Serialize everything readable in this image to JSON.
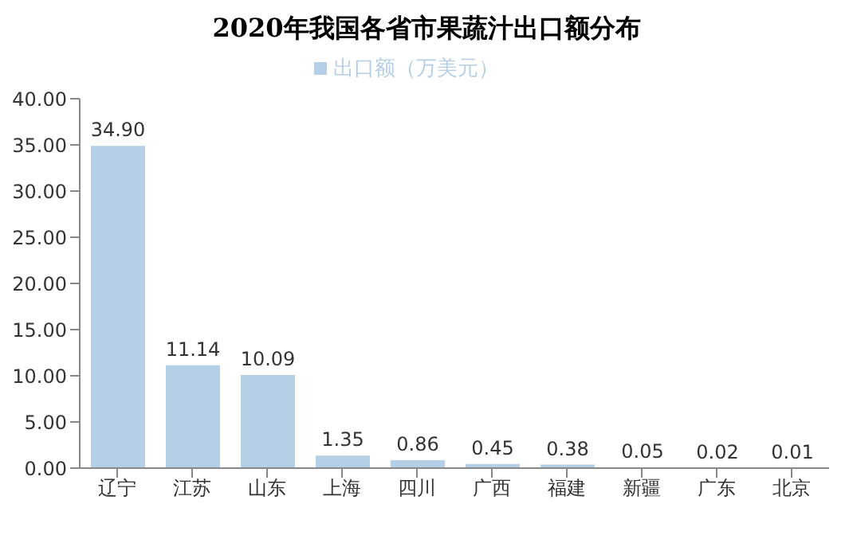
{
  "chart_data": {
    "type": "bar",
    "title": "2020年我国各省市果蔬汁出口额分布",
    "categories": [
      "辽宁",
      "江苏",
      "山东",
      "上海",
      "四川",
      "广西",
      "福建",
      "新疆",
      "广东",
      "北京"
    ],
    "series": [
      {
        "name": "出口额（万美元）",
        "color": "#b4cfe6",
        "values": [
          34.9,
          11.14,
          10.09,
          1.35,
          0.86,
          0.45,
          0.38,
          0.05,
          0.02,
          0.01
        ],
        "value_labels": [
          "34.90",
          "11.14",
          "10.09",
          "1.35",
          "0.86",
          "0.45",
          "0.38",
          "0.05",
          "0.02",
          "0.01"
        ]
      }
    ],
    "ylim": [
      0,
      40
    ],
    "yticks": [
      {
        "value": 0,
        "label": "0.00"
      },
      {
        "value": 5,
        "label": "5.00"
      },
      {
        "value": 10,
        "label": "10.00"
      },
      {
        "value": 15,
        "label": "15.00"
      },
      {
        "value": 20,
        "label": "20.00"
      },
      {
        "value": 25,
        "label": "25.00"
      },
      {
        "value": 30,
        "label": "30.00"
      },
      {
        "value": 35,
        "label": "35.00"
      },
      {
        "value": 40,
        "label": "40.00"
      }
    ],
    "grid": false,
    "legend": "top"
  }
}
